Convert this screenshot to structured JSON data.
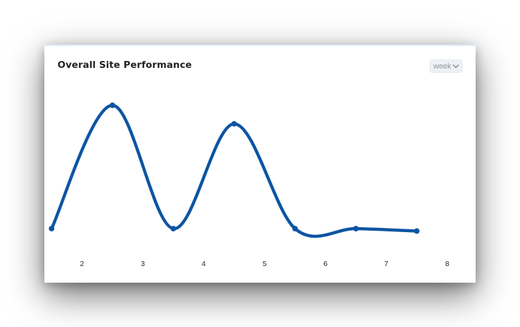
{
  "card": {
    "title": "Overall Site Performance",
    "period_select": {
      "value": "week"
    }
  },
  "icons": {
    "select_chevron": "chevron-down-icon"
  },
  "colors": {
    "line": "#0d55a3",
    "accent_border": "#dbe6f3"
  },
  "chart_data": {
    "type": "line",
    "title": "Overall Site Performance",
    "xlabel": "",
    "ylabel": "",
    "grid": false,
    "smooth": true,
    "x_ticks": [
      2,
      3,
      4,
      5,
      6,
      7,
      8
    ],
    "x": [
      1.5,
      2.5,
      3.5,
      4.5,
      5.5,
      6.5,
      7.5
    ],
    "values": [
      0.0,
      1.0,
      0.0,
      0.85,
      0.0,
      0.0,
      -0.02
    ],
    "ylim": [
      -0.1,
      1.1
    ],
    "xlim": [
      1.45,
      8.0
    ]
  }
}
